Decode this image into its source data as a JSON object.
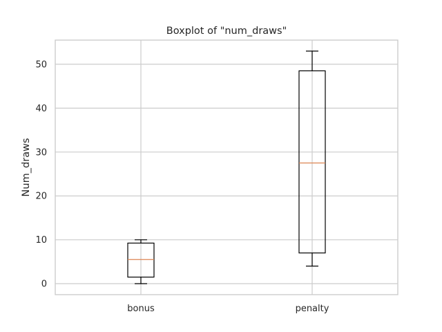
{
  "chart_data": {
    "type": "boxplot",
    "title": "Boxplot of \"num_draws\"",
    "xlabel": "",
    "ylabel": "Num_draws",
    "ylim": [
      -2.5,
      55.5
    ],
    "yticks": [
      0,
      10,
      20,
      30,
      40,
      50
    ],
    "grid": true,
    "categories": [
      "bonus",
      "penalty"
    ],
    "boxes": [
      {
        "category": "bonus",
        "whisker_low": 0,
        "q1": 1.5,
        "median": 5.5,
        "q3": 9.25,
        "whisker_high": 10
      },
      {
        "category": "penalty",
        "whisker_low": 4,
        "q1": 7,
        "median": 27.5,
        "q3": 48.5,
        "whisker_high": 53
      }
    ],
    "colors": {
      "box": "#000000",
      "median": "#dd8452",
      "grid": "#cccccc"
    }
  }
}
